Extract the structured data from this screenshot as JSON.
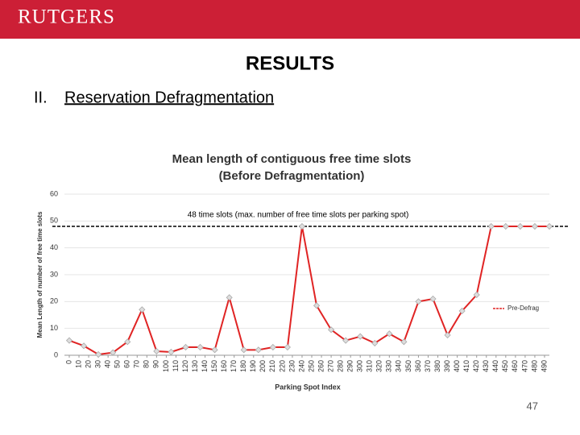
{
  "header": {
    "logo": "RUTGERS"
  },
  "title": "RESULTS",
  "section": {
    "number": "II.",
    "text": "Reservation Defragmentation"
  },
  "page_number": "47",
  "chart_data": {
    "type": "line",
    "title": [
      "Mean length of contiguous free time slots",
      "(Before Defragmentation)"
    ],
    "x_label": "Parking Spot Index",
    "y_label": "Mean Length of number of free time slots",
    "annotation": "48 time slots (max. number of free time slots per parking spot)",
    "reference_line": 48,
    "x": [
      0,
      15,
      30,
      45,
      60,
      75,
      90,
      105,
      120,
      135,
      150,
      165,
      180,
      195,
      210,
      225,
      240,
      255,
      270,
      285,
      300,
      315,
      330,
      345,
      360,
      375,
      390,
      405,
      420,
      435,
      450,
      465,
      480,
      495
    ],
    "series": [
      {
        "name": "Pre-Defrag",
        "color": "#e02424",
        "values": [
          5.5,
          3.5,
          0.3,
          1,
          5,
          17,
          1.5,
          1.2,
          3,
          3,
          2,
          21.5,
          2,
          2,
          3,
          3,
          48,
          18.5,
          9.5,
          5.5,
          7,
          4.5,
          8,
          5,
          20,
          21,
          7.5,
          16.5,
          22.5,
          48,
          48,
          48,
          48,
          48
        ]
      }
    ],
    "xlim": [
      0,
      495
    ],
    "xticks": [
      0,
      10,
      20,
      30,
      40,
      50,
      60,
      70,
      80,
      90,
      100,
      110,
      120,
      130,
      140,
      150,
      160,
      170,
      180,
      190,
      200,
      210,
      220,
      230,
      240,
      250,
      260,
      270,
      280,
      290,
      300,
      310,
      320,
      330,
      340,
      350,
      360,
      370,
      380,
      390,
      400,
      410,
      420,
      430,
      440,
      450,
      460,
      470,
      480,
      490
    ],
    "ylim": [
      0,
      60
    ],
    "yticks": [
      0,
      10,
      20,
      30,
      40,
      50,
      60
    ],
    "grid": true,
    "legend": "right"
  }
}
